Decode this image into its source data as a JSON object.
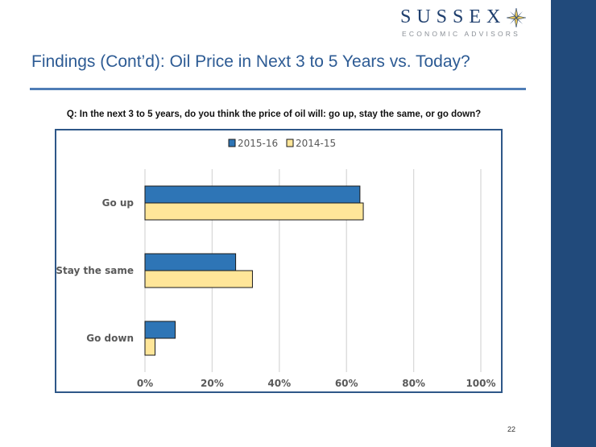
{
  "header": {
    "logo_word": "SUSSEX",
    "logo_subtitle": "ECONOMIC ADVISORS",
    "logo_icon": "compass-star-icon"
  },
  "slide": {
    "title": "Findings (Cont’d): Oil Price in Next 3 to 5 Years vs. Today?",
    "question": "Q: In the next 3 to 5 years, do you think the price of oil will: go up, stay the same, or go down?",
    "page_number": "22"
  },
  "colors": {
    "sidebar": "#214a7b",
    "title": "#2d5b94",
    "series_2015_16": "#2e75b6",
    "series_2014_15": "#ffe699"
  },
  "chart_data": {
    "type": "bar",
    "orientation": "horizontal",
    "title": "",
    "xlabel": "",
    "ylabel": "",
    "categories": [
      "Go up",
      "Stay the same",
      "Go down"
    ],
    "series": [
      {
        "name": "2015-16",
        "color": "#2e75b6",
        "values": [
          64,
          27,
          9
        ]
      },
      {
        "name": "2014-15",
        "color": "#ffe699",
        "values": [
          65,
          32,
          3
        ]
      }
    ],
    "xlim": [
      0,
      100
    ],
    "x_ticks": [
      "0%",
      "20%",
      "40%",
      "60%",
      "80%",
      "100%"
    ],
    "x_tick_values": [
      0,
      20,
      40,
      60,
      80,
      100
    ],
    "grid": "vertical",
    "legend": "top-center",
    "value_unit": "percent"
  }
}
